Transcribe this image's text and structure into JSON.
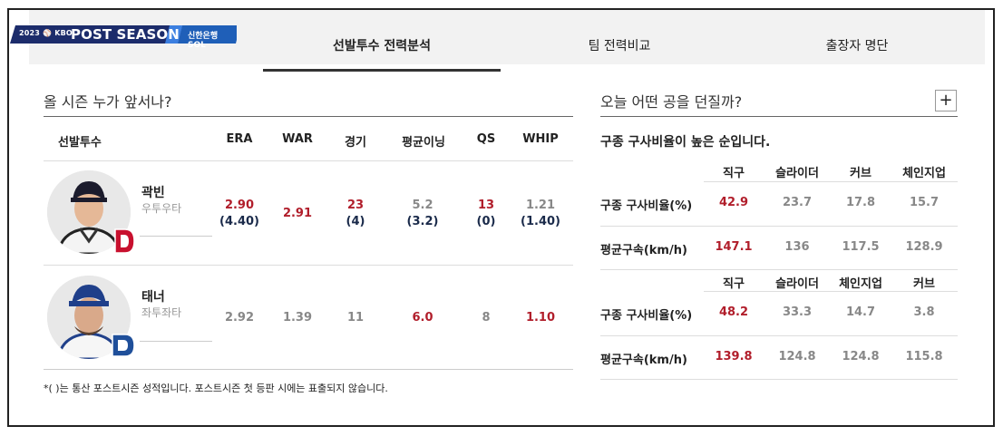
{
  "header": {
    "logo": {
      "year": "2023 ⚾ KBO",
      "title": "POST SEASON",
      "sponsor": "신한은행 SOL"
    },
    "tabs": [
      {
        "label": "선발투수 전력분석",
        "active": true
      },
      {
        "label": "팀 전력비교",
        "active": false
      },
      {
        "label": "출장자 명단",
        "active": false
      }
    ]
  },
  "left": {
    "title": "올 시즌 누가 앞서나?",
    "columns": [
      "선발투수",
      "ERA",
      "WAR",
      "경기",
      "평균이닝",
      "QS",
      "WHIP"
    ],
    "pitchers": [
      {
        "name": "곽빈",
        "hand": "우투우타",
        "team_icon": "doosan-d-logo-red",
        "era": "2.90",
        "era_post": "(4.40)",
        "war": "2.91",
        "games": "23",
        "games_post": "(4)",
        "avg_inn": "5.2",
        "avg_inn_post": "(3.2)",
        "qs": "13",
        "qs_post": "(0)",
        "whip": "1.21",
        "whip_post": "(1.40)"
      },
      {
        "name": "태너",
        "hand": "좌투좌타",
        "team_icon": "nc-d-logo-blue",
        "era": "2.92",
        "war": "1.39",
        "games": "11",
        "avg_inn": "6.0",
        "qs": "8",
        "whip": "1.10"
      }
    ],
    "note": "*( )는 통산 포스트시즌 성적입니다. 포스트시즌 첫 등판 시에는 표출되지 않습니다."
  },
  "right": {
    "title": "오늘 어떤 공을 던질까?",
    "expand_label": "+",
    "subtitle": "구종 구사비율이 높은 순입니다.",
    "tables": [
      {
        "pitches": [
          "직구",
          "슬라이더",
          "커브",
          "체인지업"
        ],
        "rows": [
          {
            "label": "구종 구사비율(%)",
            "values": [
              "42.9",
              "23.7",
              "17.8",
              "15.7"
            ]
          },
          {
            "label": "평균구속(km/h)",
            "values": [
              "147.1",
              "136",
              "117.5",
              "128.9"
            ]
          }
        ]
      },
      {
        "pitches": [
          "직구",
          "슬라이더",
          "체인지업",
          "커브"
        ],
        "rows": [
          {
            "label": "구종 구사비율(%)",
            "values": [
              "48.2",
              "33.3",
              "14.7",
              "3.8"
            ]
          },
          {
            "label": "평균구속(km/h)",
            "values": [
              "139.8",
              "124.8",
              "124.8",
              "115.8"
            ]
          }
        ]
      }
    ]
  },
  "colors": {
    "accent_red": "#b11e2b",
    "navy": "#1a2a4a",
    "muted": "#888888",
    "logo_navy": "#1c2c6b"
  }
}
